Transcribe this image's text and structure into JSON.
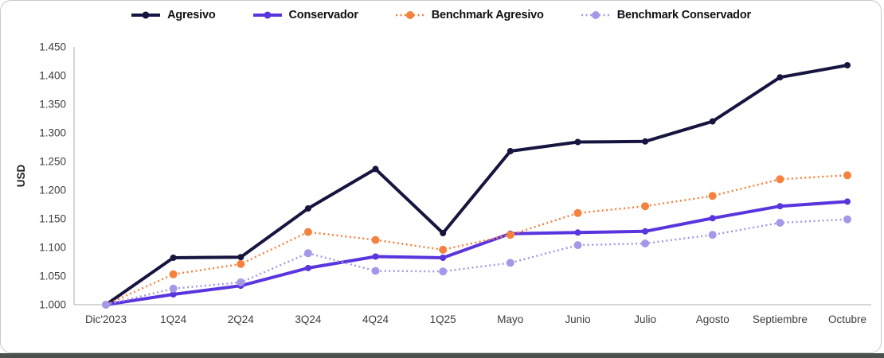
{
  "chart_data": {
    "type": "line",
    "title": "",
    "xlabel": "",
    "ylabel": "USD",
    "legend_position": "top",
    "grid": false,
    "y_min": 1.0,
    "y_max": 1.45,
    "y_ticks": [
      "1.000",
      "1.050",
      "1.100",
      "1.150",
      "1.200",
      "1.250",
      "1.300",
      "1.350",
      "1.400",
      "1.450"
    ],
    "categories": [
      "Dic'2023",
      "1Q24",
      "2Q24",
      "3Q24",
      "4Q24",
      "1Q25",
      "Mayo",
      "Junio",
      "Julio",
      "Agosto",
      "Septiembre",
      "Octubre"
    ],
    "series": [
      {
        "name": "Agresivo",
        "color": "#15153f",
        "style": "solid",
        "line_width": 4,
        "marker_size": 4,
        "values": [
          1.0,
          1.082,
          1.083,
          1.168,
          1.237,
          1.125,
          1.268,
          1.284,
          1.285,
          1.32,
          1.397,
          1.418
        ]
      },
      {
        "name": "Conservador",
        "color": "#5a35dd",
        "style": "solid",
        "line_width": 4,
        "marker_size": 4,
        "values": [
          1.0,
          1.018,
          1.033,
          1.064,
          1.084,
          1.082,
          1.124,
          1.126,
          1.128,
          1.151,
          1.172,
          1.18
        ]
      },
      {
        "name": "Benchmark Agresivo",
        "color": "#f5823e",
        "style": "dotted",
        "line_width": 2.5,
        "marker_size": 5,
        "values": [
          1.0,
          1.053,
          1.071,
          1.127,
          1.113,
          1.096,
          1.122,
          1.16,
          1.172,
          1.19,
          1.219,
          1.226
        ]
      },
      {
        "name": "Benchmark Conservador",
        "color": "#a29ae8",
        "style": "dotted",
        "line_width": 2.5,
        "marker_size": 5,
        "values": [
          1.0,
          1.028,
          1.039,
          1.09,
          1.059,
          1.058,
          1.073,
          1.104,
          1.107,
          1.122,
          1.143,
          1.149
        ]
      }
    ]
  },
  "frame": {
    "bottom_edge_color": "#4a524b",
    "card_border_color": "#c9c9c9",
    "axis_color": "#c9c9c9"
  }
}
